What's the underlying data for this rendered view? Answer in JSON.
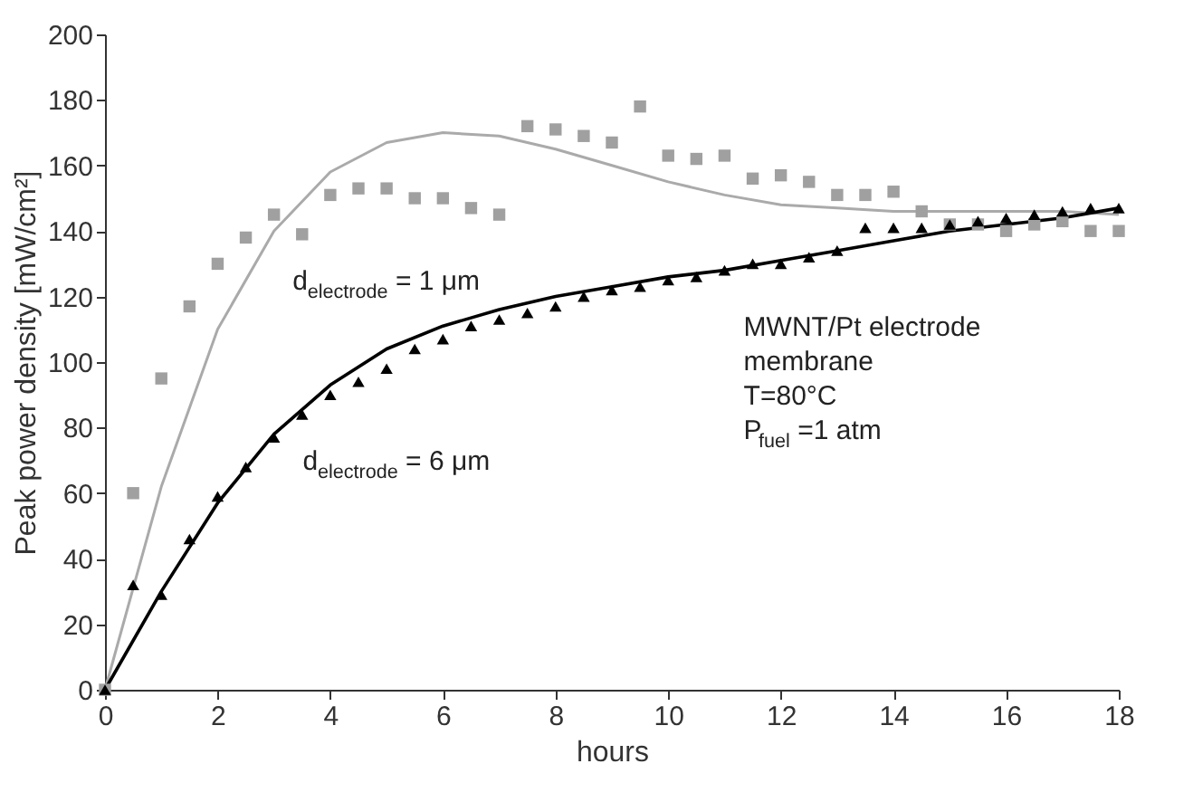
{
  "chart_data": {
    "type": "scatter",
    "xlabel": "hours",
    "ylabel": "Peak power density [mW/cm²]",
    "xlim": [
      0,
      18
    ],
    "xticks": [
      0,
      2,
      4,
      6,
      8,
      10,
      12,
      14,
      16,
      18
    ],
    "ylim": [
      0,
      200
    ],
    "yticks": [
      0,
      20,
      40,
      60,
      80,
      100,
      120,
      140,
      160,
      180,
      200
    ],
    "grid": false,
    "series": [
      {
        "type": "line",
        "color": "#aaaaaa",
        "marker": "none",
        "line_style": "solid",
        "x": [
          0,
          1,
          2,
          3,
          4,
          5,
          6,
          7,
          8,
          9,
          10,
          11,
          12,
          13,
          14,
          15,
          16,
          17,
          18
        ],
        "values": [
          0,
          62,
          110,
          140,
          158,
          167,
          170,
          169,
          165,
          160,
          155,
          151,
          148,
          147,
          146,
          146,
          146,
          146,
          145
        ]
      },
      {
        "type": "line",
        "color": "#000000",
        "marker": "none",
        "line_style": "solid",
        "x": [
          0,
          1,
          2,
          3,
          4,
          5,
          6,
          7,
          8,
          9,
          10,
          11,
          12,
          13,
          14,
          15,
          16,
          17,
          18
        ],
        "values": [
          0,
          30,
          57,
          78,
          93,
          104,
          111,
          116,
          120,
          123,
          126,
          128,
          131,
          134,
          137,
          140,
          142,
          144,
          147
        ]
      },
      {
        "color": "#a0a0a0",
        "marker": "square",
        "x": [
          0,
          0.5,
          1,
          1.5,
          2,
          2.5,
          3,
          3.5,
          4,
          4.5,
          5,
          5.5,
          6,
          6.5,
          7,
          7.5,
          8,
          8.5,
          9,
          9.5,
          10,
          10.5,
          11,
          11.5,
          12,
          12.5,
          13,
          13.5,
          14,
          14.5,
          15,
          15.5,
          16,
          16.5,
          17,
          17.5,
          18
        ],
        "values": [
          0,
          60,
          95,
          117,
          130,
          138,
          145,
          139,
          151,
          153,
          153,
          150,
          150,
          147,
          145,
          172,
          171,
          169,
          167,
          178,
          163,
          162,
          163,
          156,
          157,
          155,
          151,
          151,
          152,
          146,
          142,
          142,
          140,
          142,
          143,
          140,
          140
        ]
      },
      {
        "color": "#000000",
        "marker": "triangle",
        "x": [
          0,
          0.5,
          1,
          1.5,
          2,
          2.5,
          3,
          3.5,
          4,
          4.5,
          5,
          5.5,
          6,
          6.5,
          7,
          7.5,
          8,
          8.5,
          9,
          9.5,
          10,
          10.5,
          11,
          11.5,
          12,
          12.5,
          13,
          13.5,
          14,
          14.5,
          15,
          15.5,
          16,
          16.5,
          17,
          17.5,
          18
        ],
        "values": [
          0,
          32,
          29,
          46,
          59,
          68,
          77,
          84,
          90,
          94,
          98,
          104,
          107,
          111,
          113,
          115,
          117,
          120,
          122,
          123,
          125,
          126,
          128,
          130,
          130,
          132,
          134,
          141,
          141,
          141,
          142,
          143,
          144,
          145,
          146,
          147,
          147
        ]
      }
    ],
    "annotations": [
      "d$_{electrode}$= 1 μm",
      "d$_{electrode}$= 6 μm",
      "MWNT/Pt  electrode",
      "membrane",
      "T=80°C",
      "P$_{fuel}$=1 atm"
    ]
  }
}
